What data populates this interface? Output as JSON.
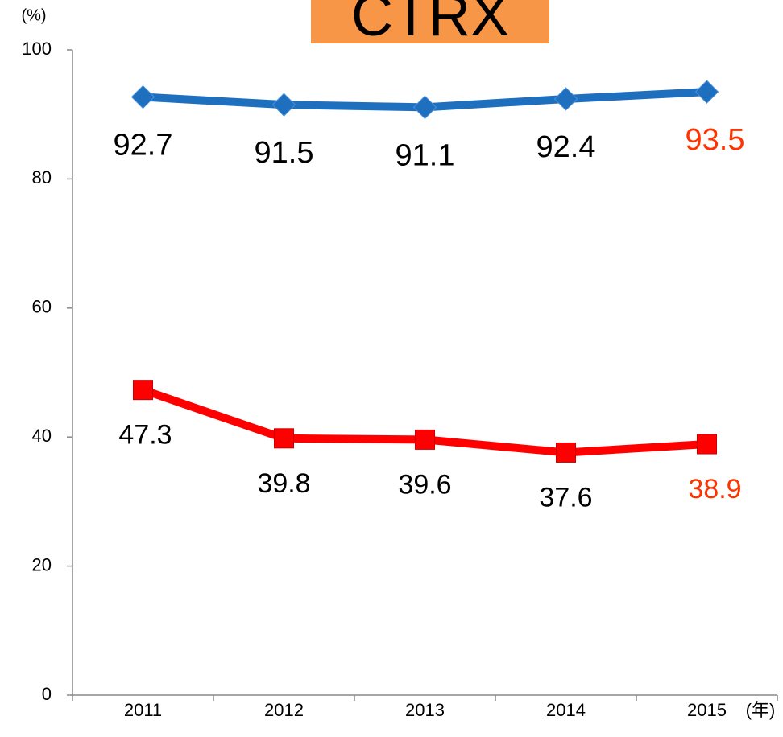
{
  "chart_data": {
    "type": "line",
    "title": "CTRX",
    "title_background": "#f79646",
    "y_label": "(%)",
    "x_label": "(年)",
    "categories": [
      "2011",
      "2012",
      "2013",
      "2014",
      "2015"
    ],
    "series": [
      {
        "color": "#1f6fbf",
        "marker": "diamond",
        "values": [
          92.7,
          91.5,
          91.1,
          92.4,
          93.5
        ]
      },
      {
        "color": "#ff0000",
        "marker": "square",
        "values": [
          47.3,
          39.8,
          39.6,
          37.6,
          38.9
        ]
      }
    ],
    "highlight_last_label_color": "#ff3300",
    "ylim": [
      0,
      100
    ],
    "yticks": [
      0,
      20,
      40,
      60,
      80,
      100
    ]
  }
}
